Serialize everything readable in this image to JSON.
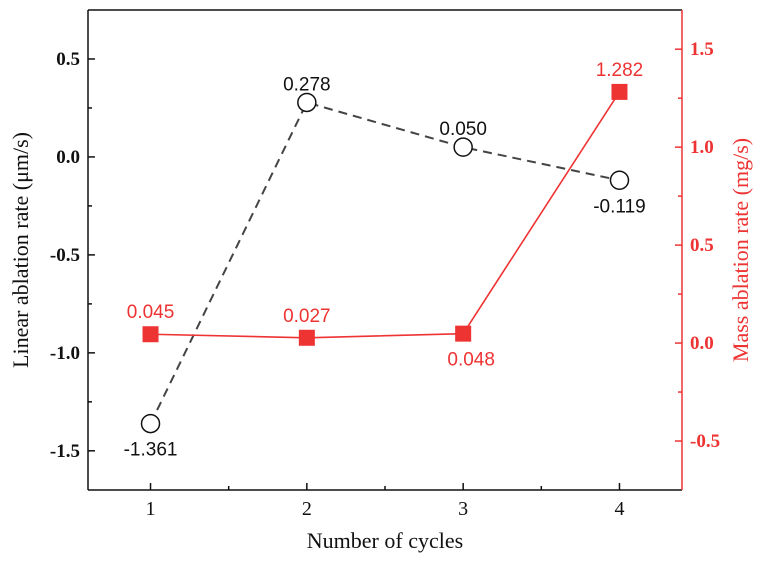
{
  "chart_data": {
    "type": "line",
    "title": "",
    "xlabel": "Number of cycles",
    "ylabel": "Linear ablation rate (μm/s)",
    "y2label": "Mass ablation rate (mg/s)",
    "x": [
      1,
      2,
      3,
      4
    ],
    "xlim": [
      0.6,
      4.4
    ],
    "ylim": [
      -1.7,
      0.75
    ],
    "y2lim": [
      -0.75,
      1.7
    ],
    "x_ticks": [
      "1",
      "2",
      "3",
      "4"
    ],
    "y_ticks": [
      0.5,
      0.0,
      -0.5,
      -1.0,
      -1.5
    ],
    "y_tick_labels": [
      "0.5",
      "0.0",
      "-0.5",
      "-1.0",
      "-1.5"
    ],
    "y2_ticks": [
      1.5,
      1.0,
      0.5,
      0.0,
      -0.5
    ],
    "y2_tick_labels": [
      "1.5",
      "1.0",
      "0.5",
      "0.0",
      "-0.5"
    ],
    "grid": false,
    "series": [
      {
        "name": "Linear ablation rate",
        "axis": "left",
        "color": "#444444",
        "marker": "open-circle",
        "line": "dashed",
        "values": [
          -1.361,
          0.278,
          0.05,
          -0.119
        ],
        "labels": [
          "-1.361",
          "0.278",
          "0.050",
          "-0.119"
        ]
      },
      {
        "name": "Mass ablation rate",
        "axis": "right",
        "color": "#ee3333",
        "marker": "filled-square",
        "line": "solid",
        "values": [
          0.045,
          0.027,
          0.048,
          1.282
        ],
        "labels": [
          "0.045",
          "0.027",
          "0.048",
          "1.282"
        ]
      }
    ]
  }
}
